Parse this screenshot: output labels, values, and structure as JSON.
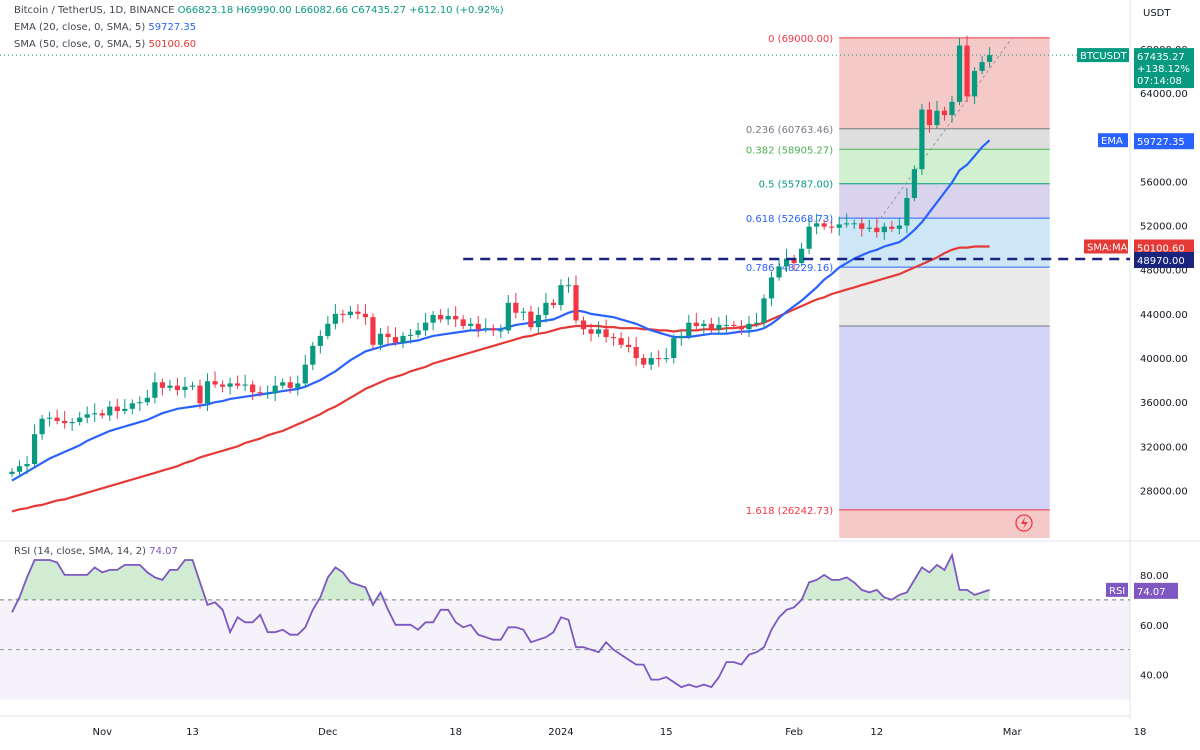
{
  "header": {
    "title": "Bitcoin / TetherUS, 1D, BINANCE",
    "ohlc": "O66823.18 H69990.00 L66082.66 C67435.27 +612.10 (+0.92%)",
    "ema_label": "EMA (20, close, 0, SMA, 5)",
    "ema_value": "59727.35",
    "sma_label": "SMA (50, close, 0, SMA, 5)",
    "sma_value": "50100.60",
    "currency": "USDT"
  },
  "rsi_header": {
    "label": "RSI (14, close, SMA, 14, 2)",
    "value": "74.07"
  },
  "colors": {
    "up": "#089981",
    "down": "#f23645",
    "ema": "#2962ff",
    "sma": "#e53935",
    "rsi": "#7e57c2",
    "support": "#1a237e"
  },
  "price_tags": {
    "symbol": "BTCUSDT",
    "price": "67435.27",
    "change": "+138.12%",
    "countdown": "07:14:08",
    "ema_tag": "EMA",
    "ema_value": "59727.35",
    "sma_tag": "SMA:MA",
    "sma_value": "50100.60",
    "support_value": "48970.00",
    "rsi_tag": "RSI",
    "rsi_value": "74.07"
  },
  "chart_data": [
    {
      "type": "candlestick",
      "ylim": [
        23700,
        71700
      ],
      "y_ticks": [
        {
          "value": 28000,
          "label": "28000.00"
        },
        {
          "value": 32000,
          "label": "32000.00"
        },
        {
          "value": 36000,
          "label": "36000.00"
        },
        {
          "value": 40000,
          "label": "40000.00"
        },
        {
          "value": 44000,
          "label": "44000.00"
        },
        {
          "value": 48000,
          "label": "48000.00"
        },
        {
          "value": 52000,
          "label": "52000.00"
        },
        {
          "value": 56000,
          "label": "56000.00"
        },
        {
          "value": 60000,
          "label": "60000.00"
        },
        {
          "value": 64000,
          "label": "64000.00"
        },
        {
          "value": 68000,
          "label": "68000.00"
        }
      ],
      "x_ticks": [
        {
          "date": "2023-11-01",
          "label": "Nov"
        },
        {
          "date": "2023-11-13",
          "label": "13"
        },
        {
          "date": "2023-12-01",
          "label": "Dec"
        },
        {
          "date": "2023-12-18",
          "label": "18"
        },
        {
          "date": "2024-01-01",
          "label": "2024"
        },
        {
          "date": "2024-01-15",
          "label": "15"
        },
        {
          "date": "2024-02-01",
          "label": "Feb"
        },
        {
          "date": "2024-02-12",
          "label": "12"
        },
        {
          "date": "2024-03-01",
          "label": "Mar"
        },
        {
          "date": "2024-03-18",
          "label": "18"
        }
      ],
      "start_date": "2023-10-20",
      "closes": [
        29700,
        30200,
        30400,
        33100,
        34500,
        34600,
        34300,
        34100,
        34200,
        34600,
        34900,
        35000,
        34800,
        35600,
        35200,
        35400,
        35900,
        36000,
        36400,
        37800,
        37300,
        37500,
        37100,
        37400,
        37500,
        35900,
        37900,
        37600,
        37400,
        37700,
        37500,
        37600,
        36900,
        36800,
        36800,
        37500,
        37800,
        37300,
        37700,
        39400,
        41100,
        42000,
        43100,
        44000,
        43900,
        44200,
        44000,
        43700,
        41200,
        42200,
        41900,
        41400,
        42000,
        42100,
        42500,
        43200,
        43900,
        43500,
        43800,
        43500,
        42900,
        43100,
        42600,
        42700,
        42500,
        42500,
        45000,
        44100,
        44200,
        42800,
        43900,
        45000,
        44800,
        46600,
        46600,
        43400,
        42600,
        42200,
        42600,
        41900,
        41800,
        41200,
        41000,
        40000,
        39400,
        40000,
        39900,
        40000,
        41800,
        42000,
        43200,
        42900,
        43100,
        42600,
        43000,
        43000,
        42900,
        42600,
        43100,
        43200,
        45400,
        47300,
        48300,
        49000,
        48600,
        49900,
        51900,
        52200,
        51900,
        51800,
        52100,
        52200,
        52200,
        51700,
        51800,
        51400,
        51900,
        51700,
        52000,
        54500,
        57100,
        62500,
        61100,
        62400,
        62000,
        63200,
        68300,
        63700,
        66000,
        66800,
        67435
      ],
      "opens": [
        29500,
        29700,
        30200,
        30400,
        33100,
        34500,
        34600,
        34300,
        34100,
        34200,
        34600,
        34900,
        35000,
        34800,
        35600,
        35200,
        35400,
        35900,
        36000,
        36400,
        37800,
        37300,
        37500,
        37100,
        37400,
        37500,
        35900,
        37900,
        37600,
        37400,
        37700,
        37500,
        37600,
        36900,
        36800,
        36800,
        37500,
        37800,
        37300,
        37700,
        39400,
        41100,
        42000,
        43100,
        44000,
        43900,
        44200,
        44000,
        43700,
        41200,
        42200,
        41900,
        41400,
        42000,
        42100,
        42500,
        43200,
        43900,
        43500,
        43800,
        43500,
        42900,
        43100,
        42600,
        42700,
        42500,
        42500,
        45000,
        44100,
        44200,
        42800,
        43900,
        45000,
        44800,
        46600,
        46600,
        43400,
        42600,
        42200,
        42600,
        41900,
        41800,
        41200,
        41000,
        40000,
        39400,
        40000,
        39900,
        40000,
        41800,
        42000,
        43200,
        42900,
        43100,
        42600,
        43000,
        43000,
        42900,
        42600,
        43100,
        43200,
        45400,
        47300,
        48300,
        49000,
        48600,
        49900,
        51900,
        52200,
        51900,
        51800,
        52100,
        52200,
        52200,
        51700,
        51800,
        51400,
        51900,
        51700,
        52000,
        54500,
        57100,
        62500,
        61100,
        62400,
        62000,
        63200,
        68300,
        63700,
        66000,
        66823
      ],
      "ema20": [
        28900,
        29300,
        29700,
        30100,
        30500,
        30900,
        31200,
        31500,
        31800,
        32100,
        32500,
        32800,
        33100,
        33400,
        33600,
        33800,
        34000,
        34200,
        34400,
        34700,
        35000,
        35200,
        35400,
        35500,
        35600,
        35700,
        35800,
        36000,
        36100,
        36300,
        36400,
        36500,
        36600,
        36700,
        36800,
        36900,
        37000,
        37100,
        37200,
        37400,
        37700,
        38000,
        38400,
        38800,
        39300,
        39800,
        40200,
        40600,
        40800,
        41000,
        41200,
        41300,
        41400,
        41500,
        41600,
        41800,
        42000,
        42100,
        42200,
        42300,
        42400,
        42500,
        42500,
        42600,
        42600,
        42600,
        42800,
        43000,
        43100,
        43200,
        43300,
        43400,
        43500,
        43800,
        44100,
        44300,
        44200,
        44000,
        43900,
        43800,
        43700,
        43500,
        43300,
        43100,
        42800,
        42500,
        42300,
        42100,
        41900,
        41900,
        41900,
        42000,
        42100,
        42200,
        42200,
        42200,
        42300,
        42400,
        42400,
        42500,
        42700,
        43100,
        43600,
        44200,
        44700,
        45200,
        45800,
        46400,
        47100,
        47600,
        48200,
        48600,
        49000,
        49300,
        49600,
        49800,
        50100,
        50300,
        50500,
        51000,
        51600,
        52300,
        53200,
        54100,
        55000,
        55900,
        57000,
        57500,
        58300,
        59100,
        59727
      ],
      "sma50": [
        26100,
        26300,
        26400,
        26600,
        26700,
        26900,
        27100,
        27200,
        27400,
        27600,
        27800,
        28000,
        28200,
        28400,
        28600,
        28800,
        29000,
        29200,
        29400,
        29600,
        29800,
        30000,
        30200,
        30500,
        30700,
        31000,
        31200,
        31400,
        31600,
        31800,
        32000,
        32300,
        32500,
        32700,
        33000,
        33200,
        33400,
        33700,
        34000,
        34300,
        34600,
        34900,
        35300,
        35600,
        36000,
        36400,
        36800,
        37200,
        37500,
        37800,
        38100,
        38300,
        38500,
        38800,
        39000,
        39200,
        39500,
        39700,
        39900,
        40100,
        40300,
        40500,
        40700,
        40900,
        41100,
        41300,
        41500,
        41700,
        41900,
        42000,
        42200,
        42300,
        42500,
        42700,
        42800,
        42900,
        42900,
        42900,
        42900,
        42800,
        42800,
        42700,
        42700,
        42700,
        42600,
        42600,
        42500,
        42500,
        42400,
        42500,
        42500,
        42500,
        42600,
        42600,
        42600,
        42700,
        42700,
        42800,
        42900,
        43000,
        43200,
        43500,
        43800,
        44100,
        44400,
        44700,
        45000,
        45300,
        45500,
        45800,
        46000,
        46200,
        46400,
        46600,
        46800,
        47000,
        47200,
        47400,
        47600,
        47900,
        48200,
        48500,
        48800,
        49100,
        49500,
        49800,
        50000,
        50000,
        50100,
        50100,
        50100
      ],
      "fib_levels": [
        {
          "ratio": "0",
          "value": 69000.0
        },
        {
          "ratio": "0.236",
          "value": 60763.46
        },
        {
          "ratio": "0.382",
          "value": 58905.27
        },
        {
          "ratio": "0.5",
          "value": 55787.0
        },
        {
          "ratio": "0.618",
          "value": 52668.73
        },
        {
          "ratio": "0.786",
          "value": 48229.16
        },
        {
          "ratio": "1",
          "value": 42900.0
        },
        {
          "ratio": "1.618",
          "value": 26242.73
        }
      ],
      "fib_labels": [
        "0 (69000.00)",
        "0.236 (60763.46)",
        "0.382 (58905.27)",
        "0.5 (55787.00)",
        "0.618 (52668.73)",
        "0.786 (48229.16)",
        "1.618 (26242.73)"
      ],
      "fib_range_dates": [
        "2024-02-07",
        "2024-03-06"
      ],
      "support_level": 48970.0,
      "support_start_date": "2023-12-19"
    },
    {
      "type": "line",
      "name": "RSI",
      "ylim": [
        25,
        92
      ],
      "y_ticks": [
        {
          "value": 40,
          "label": "40.00"
        },
        {
          "value": 60,
          "label": "60.00"
        },
        {
          "value": 80,
          "label": "80.00"
        }
      ],
      "band": [
        30,
        70
      ],
      "midline": 50,
      "values": [
        65,
        71,
        79,
        86,
        86,
        86,
        85,
        80,
        80,
        80,
        80,
        83,
        81,
        82,
        82,
        84,
        84,
        84,
        81,
        79,
        78,
        82,
        82,
        86,
        86,
        77,
        68,
        69,
        66,
        57,
        63,
        61,
        61,
        64,
        57,
        57,
        58,
        56,
        56,
        59,
        66,
        71,
        79,
        83,
        81,
        77,
        76,
        75,
        68,
        73,
        66,
        60,
        60,
        60,
        58,
        61,
        61,
        66,
        66,
        61,
        59,
        60,
        56,
        55,
        54,
        54,
        59,
        59,
        58,
        53,
        54,
        55,
        57,
        63,
        62,
        51,
        51,
        50,
        49,
        53,
        50,
        48,
        46,
        44,
        44,
        38,
        38,
        39,
        37,
        35,
        36,
        35,
        36,
        35,
        39,
        45,
        45,
        44,
        48,
        49,
        51,
        58,
        63,
        66,
        67,
        70,
        77,
        78,
        80,
        78,
        78,
        79,
        77,
        74,
        73,
        74,
        71,
        70,
        72,
        73,
        78,
        83,
        81,
        84,
        82,
        88,
        74,
        74,
        72,
        73,
        74
      ]
    }
  ]
}
